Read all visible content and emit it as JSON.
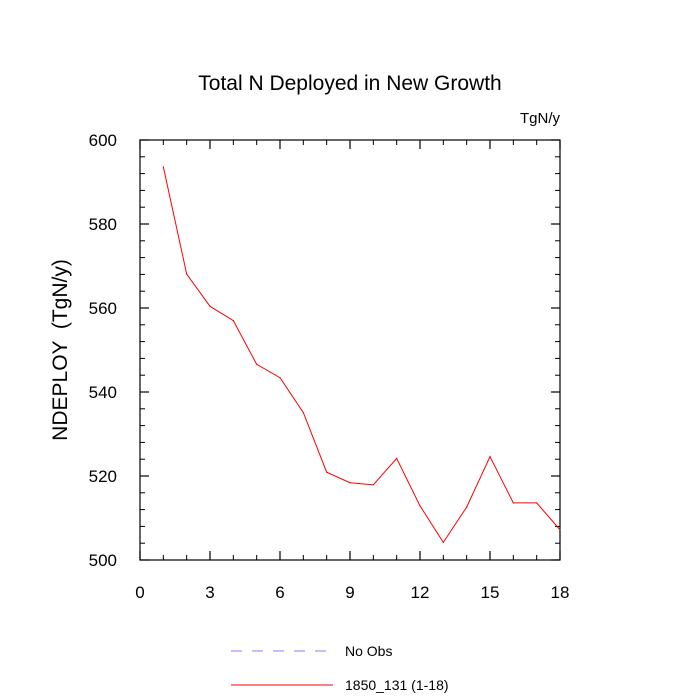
{
  "chart_data": {
    "type": "line",
    "title": "Total N Deployed in New Growth",
    "units_label": "TgN/y",
    "ylabel": "NDEPLOY  (TgN/y)",
    "xlabel": "",
    "xlim": [
      0,
      18
    ],
    "ylim": [
      500,
      600
    ],
    "x_ticks": [
      0,
      3,
      6,
      9,
      12,
      15,
      18
    ],
    "y_ticks": [
      500,
      520,
      540,
      560,
      580,
      600
    ],
    "x_minor_step": 1,
    "y_minor_step": 4,
    "grid": false,
    "legend_position": "bottom",
    "series": [
      {
        "name": "1850_131 (1-18)",
        "color": "#ff0000",
        "style": "solid",
        "x": [
          1,
          2,
          3,
          4,
          5,
          6,
          7,
          8,
          9,
          10,
          11,
          12,
          13,
          14,
          15,
          16,
          17,
          18
        ],
        "y": [
          593.6,
          568.1,
          560.4,
          557.0,
          546.6,
          543.4,
          535.1,
          520.9,
          518.4,
          517.9,
          524.2,
          512.9,
          504.2,
          512.6,
          524.6,
          513.6,
          513.6,
          507.2
        ]
      }
    ],
    "legend": [
      {
        "label": "No Obs",
        "color": "#8080ff",
        "style": "dashed"
      },
      {
        "label": "1850_131 (1-18)",
        "color": "#ff0000",
        "style": "solid"
      }
    ]
  }
}
